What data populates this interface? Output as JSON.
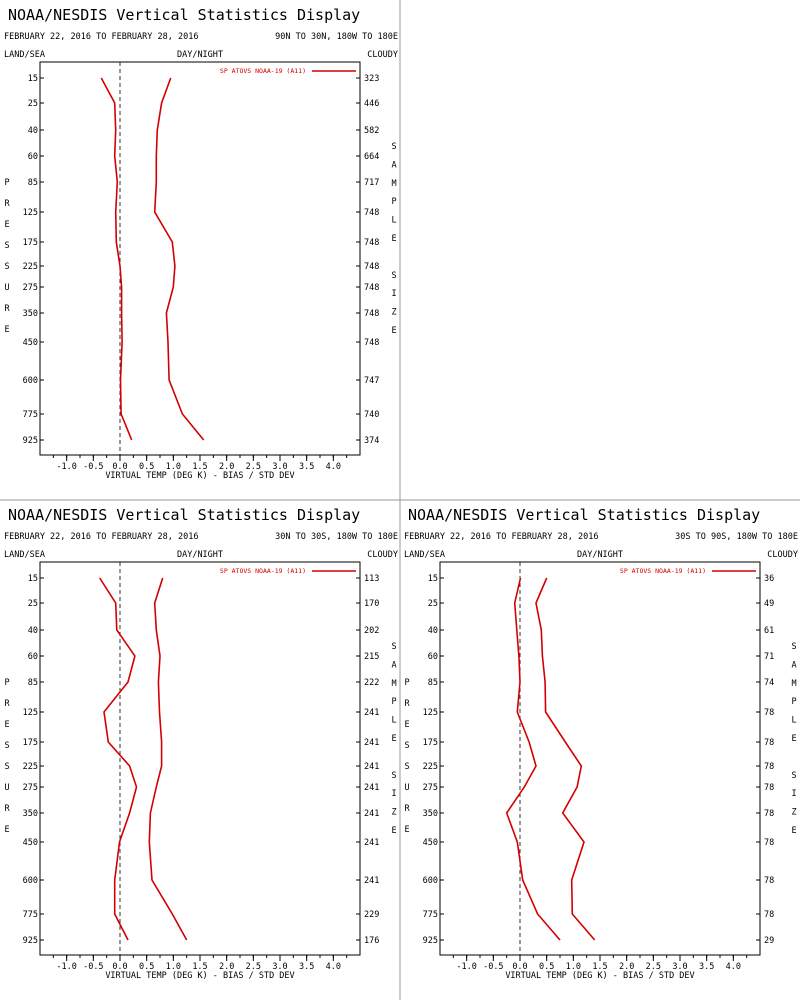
{
  "chart_data": [
    {
      "type": "line",
      "title": "NOAA/NESDIS Vertical Statistics Display",
      "date_range": "FEBRUARY 22, 2016 TO FEBRUARY 28, 2016",
      "region": "90N TO 30N, 180W TO 180E",
      "left_label": "LAND/SEA",
      "center_label": "DAY/NIGHT",
      "right_label": "CLOUDY",
      "ylabel": "PRESSURE",
      "y2label": "SAMPLE SIZE",
      "xlabel": "VIRTUAL TEMP (DEG K) - BIAS / STD DEV",
      "legend": "SP ATOVS NOAA-19 (A11)",
      "xlim": [
        -1.5,
        4.5
      ],
      "xticks": [
        "-1.0",
        "-0.5",
        "0.0",
        "0.5",
        "1.0",
        "1.5",
        "2.0",
        "2.5",
        "3.0",
        "3.5",
        "4.0"
      ],
      "pressure_levels": [
        "15",
        "25",
        "40",
        "60",
        "85",
        "125",
        "175",
        "225",
        "275",
        "350",
        "450",
        "600",
        "775",
        "925"
      ],
      "sample_size": [
        "323",
        "446",
        "582",
        "664",
        "717",
        "748",
        "748",
        "748",
        "748",
        "748",
        "748",
        "747",
        "740",
        "374"
      ],
      "series": [
        {
          "role": "bias",
          "values": [
            -0.35,
            -0.1,
            -0.08,
            -0.1,
            -0.05,
            -0.08,
            -0.07,
            0.0,
            0.03,
            0.03,
            0.04,
            0.01,
            0.02,
            0.22
          ]
        },
        {
          "role": "std_dev",
          "values": [
            0.95,
            0.78,
            0.7,
            0.68,
            0.68,
            0.65,
            0.98,
            1.03,
            1.0,
            0.87,
            0.9,
            0.92,
            1.17,
            1.57
          ]
        }
      ]
    },
    {
      "type": "line",
      "title": "NOAA/NESDIS Vertical Statistics Display",
      "date_range": "FEBRUARY 22, 2016 TO FEBRUARY 28, 2016",
      "region": "30N TO 30S, 180W TO 180E",
      "left_label": "LAND/SEA",
      "center_label": "DAY/NIGHT",
      "right_label": "CLOUDY",
      "ylabel": "PRESSURE",
      "y2label": "SAMPLE SIZE",
      "xlabel": "VIRTUAL TEMP (DEG K) - BIAS / STD DEV",
      "legend": "SP ATOVS NOAA-19 (A11)",
      "xlim": [
        -1.5,
        4.5
      ],
      "xticks": [
        "-1.0",
        "-0.5",
        "0.0",
        "0.5",
        "1.0",
        "1.5",
        "2.0",
        "2.5",
        "3.0",
        "3.5",
        "4.0"
      ],
      "pressure_levels": [
        "15",
        "25",
        "40",
        "60",
        "85",
        "125",
        "175",
        "225",
        "275",
        "350",
        "450",
        "600",
        "775",
        "925"
      ],
      "sample_size": [
        "113",
        "170",
        "202",
        "215",
        "222",
        "241",
        "241",
        "241",
        "241",
        "241",
        "241",
        "241",
        "229",
        "176"
      ],
      "series": [
        {
          "role": "bias",
          "values": [
            -0.38,
            -0.08,
            -0.06,
            0.28,
            0.15,
            -0.3,
            -0.22,
            0.18,
            0.31,
            0.18,
            -0.01,
            -0.1,
            -0.1,
            0.15
          ]
        },
        {
          "role": "std_dev",
          "values": [
            0.8,
            0.65,
            0.68,
            0.75,
            0.72,
            0.74,
            0.78,
            0.78,
            0.68,
            0.57,
            0.55,
            0.6,
            0.98,
            1.25
          ]
        }
      ]
    },
    {
      "type": "line",
      "title": "NOAA/NESDIS Vertical Statistics Display",
      "date_range": "FEBRUARY 22, 2016 TO FEBRUARY 28, 2016",
      "region": "30S TO 90S, 180W TO 180E",
      "left_label": "LAND/SEA",
      "center_label": "DAY/NIGHT",
      "right_label": "CLOUDY",
      "ylabel": "PRESSURE",
      "y2label": "SAMPLE SIZE",
      "xlabel": "VIRTUAL TEMP (DEG K) - BIAS / STD DEV",
      "legend": "SP ATOVS NOAA-19 (A11)",
      "xlim": [
        -1.5,
        4.5
      ],
      "xticks": [
        "-1.0",
        "-0.5",
        "0.0",
        "0.5",
        "1.0",
        "1.5",
        "2.0",
        "2.5",
        "3.0",
        "3.5",
        "4.0"
      ],
      "pressure_levels": [
        "15",
        "25",
        "40",
        "60",
        "85",
        "125",
        "175",
        "225",
        "275",
        "350",
        "450",
        "600",
        "775",
        "925"
      ],
      "sample_size": [
        "36",
        "49",
        "61",
        "71",
        "74",
        "78",
        "78",
        "78",
        "78",
        "78",
        "78",
        "78",
        "78",
        "29"
      ],
      "series": [
        {
          "role": "bias",
          "values": [
            0.01,
            -0.1,
            -0.06,
            -0.02,
            0.0,
            -0.05,
            0.17,
            0.3,
            0.08,
            -0.25,
            -0.05,
            0.05,
            0.33,
            0.75
          ]
        },
        {
          "role": "std_dev",
          "values": [
            0.5,
            0.3,
            0.4,
            0.42,
            0.47,
            0.48,
            0.85,
            1.15,
            1.07,
            0.8,
            1.2,
            0.97,
            0.98,
            1.4
          ]
        }
      ]
    }
  ]
}
